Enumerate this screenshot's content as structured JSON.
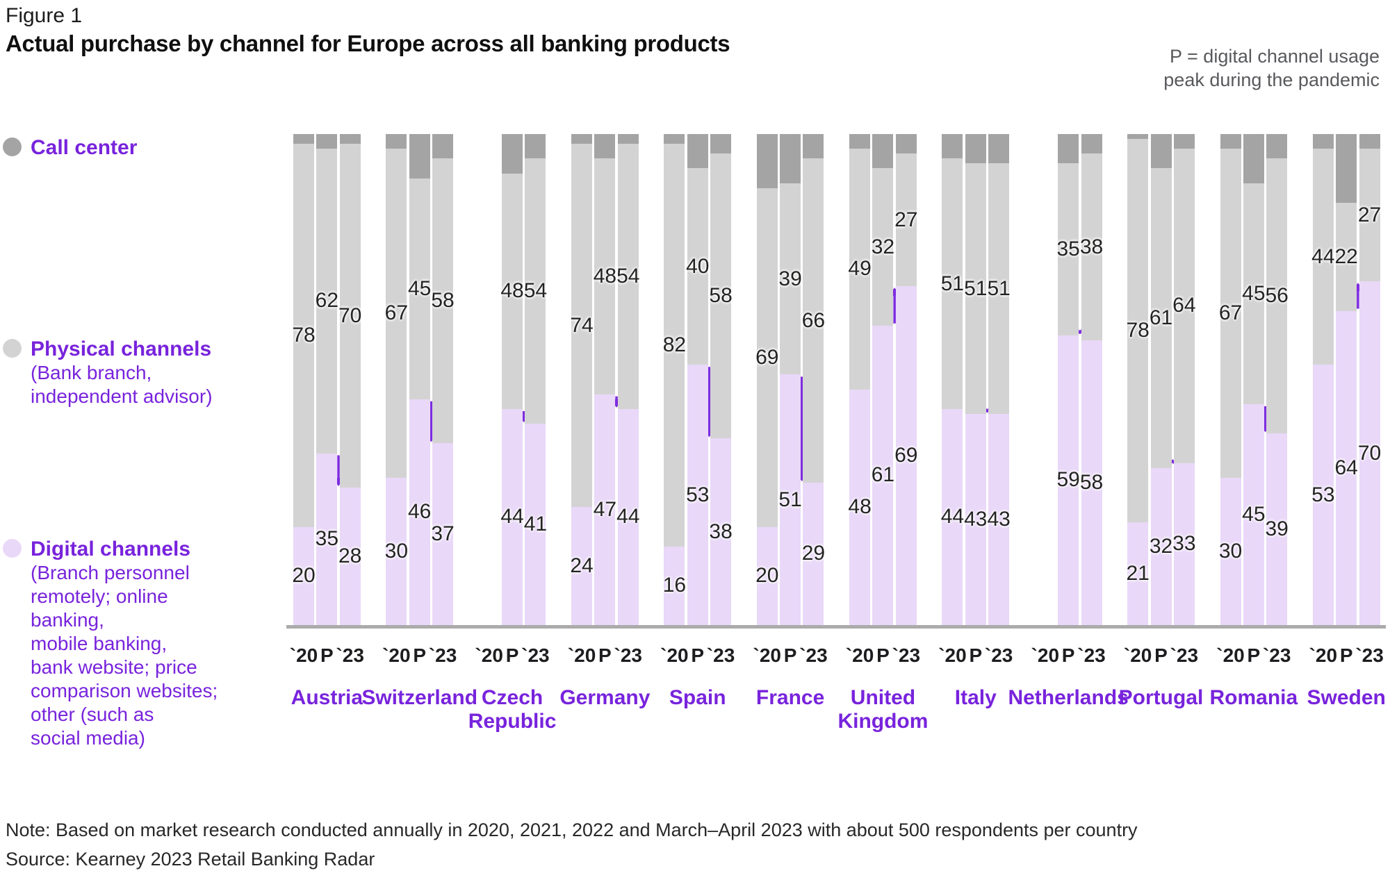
{
  "header": {
    "figure_label": "Figure 1",
    "title": "Actual purchase by channel for Europe across all banking products",
    "note_right": "P = digital channel usage\npeak during the pandemic"
  },
  "legend": {
    "call_center": {
      "label": "Call center"
    },
    "physical": {
      "label": "Physical channels",
      "sublabel": "(Bank branch,\nindependent advisor)"
    },
    "digital": {
      "label": "Digital channels",
      "sublabel": "(Branch personnel\nremotely; online banking,\nmobile banking,\nbank website; price\ncomparison websites;\nother (such as\nsocial media)"
    }
  },
  "footer": {
    "note": "Note: Based on market research conducted annually in 2020, 2021, 2022 and March–April 2023 with about 500 respondents per country",
    "source": "Source: Kearney 2023 Retail Banking Radar"
  },
  "chart_data": {
    "type": "bar",
    "subtype": "stacked-100-percent",
    "title": "Actual purchase by channel for Europe across all banking products",
    "ylim": [
      0,
      100
    ],
    "grid": false,
    "legend_position": "left",
    "x_ticks": [
      "`20",
      "P",
      "`23"
    ],
    "series_meta": [
      {
        "name": "Call center",
        "color": "#a5a4a4",
        "note": "value = 100 - digital - physical"
      },
      {
        "name": "Physical channels",
        "color": "#d4d3d4"
      },
      {
        "name": "Digital channels",
        "color": "#e9d8f8"
      }
    ],
    "arrow_color": "#7d2ce0",
    "countries": [
      {
        "name": "Austria",
        "digital": [
          20,
          35,
          28
        ],
        "physical": [
          78,
          62,
          70
        ],
        "arrow": "down"
      },
      {
        "name": "Switzerland",
        "digital": [
          30,
          46,
          37
        ],
        "physical": [
          67,
          45,
          58
        ],
        "arrow": "down"
      },
      {
        "name": "Czech\nRepublic",
        "digital": [
          null,
          44,
          41
        ],
        "physical": [
          null,
          48,
          54
        ],
        "arrow": "down"
      },
      {
        "name": "Germany",
        "digital": [
          24,
          47,
          44
        ],
        "physical": [
          74,
          48,
          54
        ],
        "arrow": "down"
      },
      {
        "name": "Spain",
        "digital": [
          16,
          53,
          38
        ],
        "physical": [
          82,
          40,
          58
        ],
        "arrow": "down"
      },
      {
        "name": "France",
        "digital": [
          20,
          51,
          29
        ],
        "physical": [
          69,
          39,
          66
        ],
        "arrow": "down"
      },
      {
        "name": "United\nKingdom",
        "digital": [
          48,
          61,
          69
        ],
        "physical": [
          49,
          32,
          27
        ],
        "arrow": "up"
      },
      {
        "name": "Italy",
        "digital": [
          44,
          43,
          43
        ],
        "physical": [
          51,
          51,
          51
        ],
        "arrow": "chevron-down"
      },
      {
        "name": "Netherlands",
        "digital": [
          null,
          59,
          58
        ],
        "physical": [
          null,
          35,
          38
        ],
        "arrow": "chevron-down"
      },
      {
        "name": "Portugal",
        "digital": [
          21,
          32,
          33
        ],
        "physical": [
          78,
          61,
          64
        ],
        "arrow": "chevron-up"
      },
      {
        "name": "Romania",
        "digital": [
          30,
          45,
          39
        ],
        "physical": [
          67,
          45,
          56
        ],
        "arrow": "down"
      },
      {
        "name": "Sweden",
        "digital": [
          53,
          64,
          70
        ],
        "physical": [
          44,
          22,
          27
        ],
        "arrow": "up"
      }
    ]
  }
}
